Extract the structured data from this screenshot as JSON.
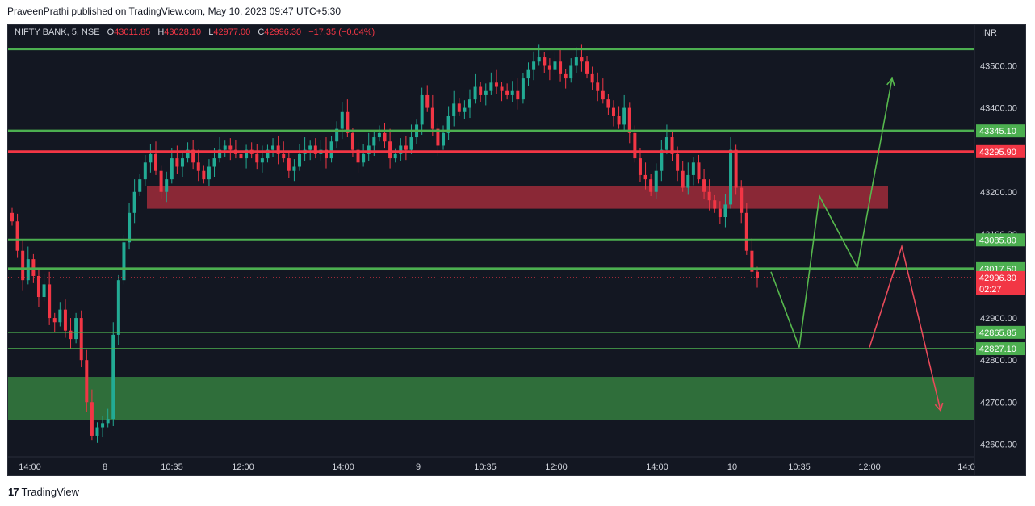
{
  "header": {
    "text": "PraveenPrathi published on TradingView.com, May 10, 2023 09:47 UTC+5:30"
  },
  "legend": {
    "symbol": "NIFTY BANK, 5, NSE",
    "o_label": "O",
    "o_value": "43011.85",
    "h_label": "H",
    "h_value": "43028.10",
    "l_label": "L",
    "l_value": "42977.00",
    "c_label": "C",
    "c_value": "42996.30",
    "change": "−17.35 (−0.04%)"
  },
  "footer": {
    "brand": "TradingView"
  },
  "colors": {
    "bg": "#131722",
    "up": "#22ab94",
    "down": "#f23645",
    "line_green": "#4caf50",
    "line_red": "#f23645",
    "zone_red": "#a02c3a",
    "zone_green": "#2f6e3a"
  },
  "chart_data": {
    "type": "candlestick",
    "currency": "INR",
    "ylim": [
      42570,
      43570
    ],
    "y_ticks": [
      "43500.00",
      "43400.00",
      "43200.00",
      "43100.00",
      "42900.00",
      "42800.00",
      "42700.00",
      "42600.00"
    ],
    "x_ticks": [
      "14:00",
      "8",
      "10:35",
      "12:00",
      "14:00",
      "9",
      "10:35",
      "12:00",
      "14:00",
      "10",
      "10:35",
      "12:00",
      "14:0"
    ],
    "last_price": {
      "value": "42996.30",
      "countdown": "02:27"
    },
    "horizontal_lines": [
      {
        "value": 43540,
        "color": "green"
      },
      {
        "value": 43345.1,
        "label": "43345.10",
        "color": "green"
      },
      {
        "value": 43295.9,
        "label": "43295.90",
        "color": "red"
      },
      {
        "value": 43085.8,
        "label": "43085.80",
        "color": "green"
      },
      {
        "value": 43017.5,
        "label": "43017.50",
        "color": "green"
      },
      {
        "value": 42865.85,
        "label": "42865.85",
        "color": "green"
      },
      {
        "value": 42827.1,
        "label": "42827.10",
        "color": "green"
      }
    ],
    "zones": [
      {
        "name": "supply-zone",
        "from": 43213,
        "to": 43160,
        "color": "red"
      },
      {
        "name": "demand-zone",
        "from": 42760,
        "to": 42658,
        "color": "green"
      }
    ],
    "projections": [
      {
        "name": "bullish-path",
        "color": "green",
        "points": [
          [
            0,
            43010
          ],
          [
            1,
            42830
          ],
          [
            2,
            43190
          ],
          [
            3,
            43020
          ],
          [
            4,
            43470
          ]
        ],
        "arrow": true
      },
      {
        "name": "bearish-path",
        "color": "red",
        "points": [
          [
            0,
            42830
          ],
          [
            1,
            43070
          ],
          [
            2,
            42680
          ]
        ],
        "arrow": true
      }
    ],
    "closes": [
      43130,
      43060,
      42990,
      43040,
      43000,
      42950,
      42980,
      42900,
      42890,
      42920,
      42870,
      42850,
      42900,
      42800,
      42700,
      42620,
      42640,
      42650,
      42660,
      42860,
      42990,
      43080,
      43150,
      43200,
      43230,
      43270,
      43290,
      43250,
      43200,
      43230,
      43280,
      43260,
      43280,
      43300,
      43270,
      43250,
      43230,
      43260,
      43280,
      43300,
      43310,
      43300,
      43290,
      43280,
      43300,
      43290,
      43270,
      43280,
      43300,
      43310,
      43290,
      43280,
      43250,
      43260,
      43290,
      43300,
      43310,
      43290,
      43300,
      43280,
      43320,
      43350,
      43390,
      43340,
      43300,
      43270,
      43290,
      43310,
      43330,
      43340,
      43320,
      43280,
      43290,
      43310,
      43300,
      43330,
      43360,
      43430,
      43400,
      43350,
      43310,
      43340,
      43380,
      43410,
      43390,
      43400,
      43420,
      43450,
      43430,
      43440,
      43460,
      43450,
      43440,
      43430,
      43440,
      43420,
      43470,
      43490,
      43510,
      43520,
      43500,
      43490,
      43510,
      43480,
      43470,
      43500,
      43520,
      43510,
      43480,
      43460,
      43440,
      43420,
      43400,
      43380,
      43360,
      43400,
      43340,
      43280,
      43240,
      43230,
      43200,
      43250,
      43300,
      43330,
      43290,
      43250,
      43210,
      43240,
      43270,
      43230,
      43200,
      43180,
      43160,
      43140,
      43170,
      43300,
      43210,
      43150,
      43060,
      43010,
      42996
    ]
  }
}
